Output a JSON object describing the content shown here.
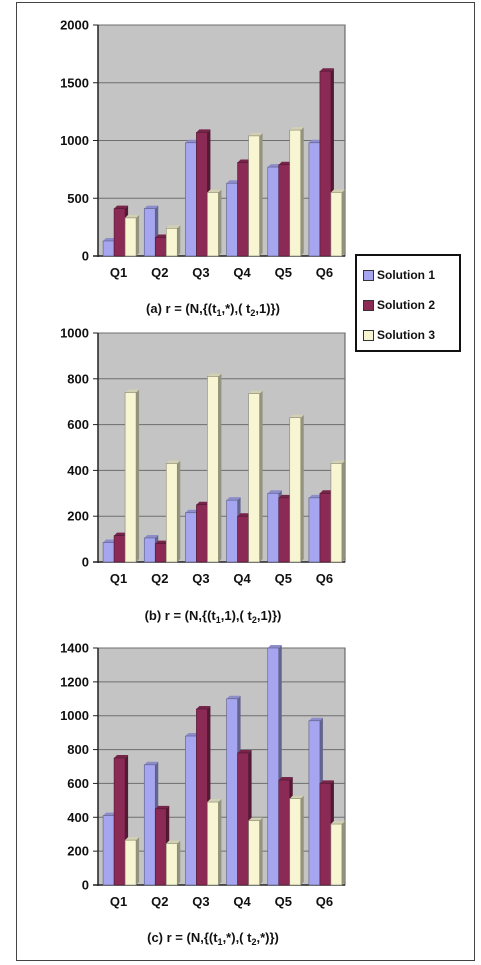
{
  "colors": {
    "series": [
      "#a6a6f0",
      "#8c2a56",
      "#f7f5d2"
    ],
    "plot_bg": "#c4c4c4",
    "grid": "#6e6e6e"
  },
  "legend": {
    "items": [
      "Solution 1",
      "Solution 2",
      "Solution 3"
    ]
  },
  "chart_data": [
    {
      "type": "bar",
      "title": "",
      "caption": "(a)  r = (N,{(t1,*),(t2,1)})",
      "caption_parts": [
        "(a)  r = (N,{(t",
        "1",
        ",*),( t",
        "2",
        ",1)})"
      ],
      "categories": [
        "Q1",
        "Q2",
        "Q3",
        "Q4",
        "Q5",
        "Q6"
      ],
      "ylim": [
        0,
        2000
      ],
      "yticks": [
        0,
        500,
        1000,
        1500,
        2000
      ],
      "grid": true,
      "legend_position": "right",
      "series": [
        {
          "name": "Solution 1",
          "values": [
            130,
            410,
            980,
            630,
            770,
            980
          ]
        },
        {
          "name": "Solution 2",
          "values": [
            410,
            160,
            1070,
            810,
            790,
            1600
          ]
        },
        {
          "name": "Solution 3",
          "values": [
            330,
            240,
            550,
            1040,
            1090,
            550
          ]
        }
      ]
    },
    {
      "type": "bar",
      "title": "",
      "caption": "(b)  r = (N,{(t1,1),(t2,1)})",
      "caption_parts": [
        "(b)  r = (N,{(t",
        "1",
        ",1),( t",
        "2",
        ",1)})"
      ],
      "categories": [
        "Q1",
        "Q2",
        "Q3",
        "Q4",
        "Q5",
        "Q6"
      ],
      "ylim": [
        0,
        1000
      ],
      "yticks": [
        0,
        200,
        400,
        600,
        800,
        1000
      ],
      "grid": true,
      "series": [
        {
          "name": "Solution 1",
          "values": [
            85,
            105,
            215,
            270,
            300,
            280
          ]
        },
        {
          "name": "Solution 2",
          "values": [
            115,
            80,
            250,
            200,
            280,
            300
          ]
        },
        {
          "name": "Solution 3",
          "values": [
            740,
            430,
            810,
            735,
            630,
            430
          ]
        }
      ]
    },
    {
      "type": "bar",
      "title": "",
      "caption": "(c)  r = (N,{(t1,*),(t2,*)})",
      "caption_parts": [
        "(c)  r = (N,{(t",
        "1",
        ",*),( t",
        "2",
        ",*)})"
      ],
      "categories": [
        "Q1",
        "Q2",
        "Q3",
        "Q4",
        "Q5",
        "Q6"
      ],
      "ylim": [
        0,
        1400
      ],
      "yticks": [
        0,
        200,
        400,
        600,
        800,
        1000,
        1200,
        1400
      ],
      "grid": true,
      "series": [
        {
          "name": "Solution 1",
          "values": [
            410,
            710,
            880,
            1100,
            1400,
            970
          ]
        },
        {
          "name": "Solution 2",
          "values": [
            750,
            450,
            1040,
            780,
            620,
            600
          ]
        },
        {
          "name": "Solution 3",
          "values": [
            265,
            245,
            490,
            380,
            510,
            360
          ]
        }
      ]
    }
  ]
}
